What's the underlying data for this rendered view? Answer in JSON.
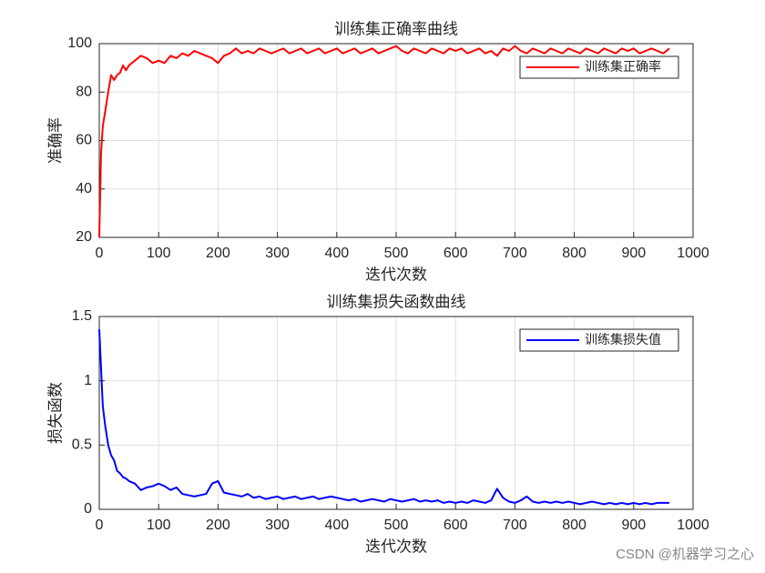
{
  "chart_data": [
    {
      "type": "line",
      "title": "训练集正确率曲线",
      "xlabel": "迭代次数",
      "ylabel": "准确率",
      "x": [
        0,
        3,
        6,
        10,
        15,
        20,
        25,
        30,
        35,
        40,
        45,
        50,
        60,
        70,
        80,
        90,
        100,
        110,
        120,
        130,
        140,
        150,
        160,
        170,
        180,
        190,
        200,
        210,
        220,
        230,
        240,
        250,
        260,
        270,
        280,
        290,
        300,
        310,
        320,
        330,
        340,
        350,
        360,
        370,
        380,
        390,
        400,
        410,
        420,
        430,
        440,
        450,
        460,
        470,
        480,
        490,
        500,
        510,
        520,
        530,
        540,
        550,
        560,
        570,
        580,
        590,
        600,
        610,
        620,
        630,
        640,
        650,
        660,
        670,
        680,
        690,
        700,
        710,
        720,
        730,
        740,
        750,
        760,
        770,
        780,
        790,
        800,
        810,
        820,
        830,
        840,
        850,
        860,
        870,
        880,
        890,
        900,
        910,
        920,
        930,
        940,
        950,
        960
      ],
      "series": [
        {
          "name": "训练集正确率",
          "color": "#ff0000",
          "values": [
            20,
            55,
            66,
            72,
            80,
            87,
            85,
            87,
            88,
            91,
            89,
            91,
            93,
            95,
            94,
            92,
            93,
            92,
            95,
            94,
            96,
            95,
            97,
            96,
            95,
            94,
            92,
            95,
            96,
            98,
            96,
            97,
            96,
            98,
            97,
            96,
            97,
            98,
            96,
            97,
            98,
            96,
            97,
            98,
            96,
            97,
            98,
            96,
            97,
            98,
            96,
            97,
            98,
            96,
            97,
            98,
            99,
            97,
            96,
            98,
            97,
            96,
            98,
            97,
            96,
            98,
            97,
            98,
            96,
            97,
            98,
            96,
            97,
            95,
            98,
            97,
            99,
            97,
            96,
            98,
            97,
            96,
            98,
            97,
            96,
            98,
            97,
            96,
            98,
            97,
            96,
            98,
            97,
            96,
            98,
            97,
            98,
            96,
            97,
            98,
            97,
            96,
            98
          ]
        }
      ],
      "xlim": [
        0,
        1000
      ],
      "xticks": [
        0,
        100,
        200,
        300,
        400,
        500,
        600,
        700,
        800,
        900,
        1000
      ],
      "ylim": [
        20,
        100
      ],
      "yticks": [
        20,
        40,
        60,
        80,
        100
      ],
      "grid": true,
      "legend": "northeast"
    },
    {
      "type": "line",
      "title": "训练集损失函数曲线",
      "xlabel": "迭代次数",
      "ylabel": "损失函数",
      "x": [
        0,
        3,
        6,
        10,
        15,
        20,
        25,
        30,
        35,
        40,
        45,
        50,
        60,
        70,
        80,
        90,
        100,
        110,
        120,
        130,
        140,
        150,
        160,
        170,
        180,
        190,
        200,
        210,
        220,
        230,
        240,
        250,
        260,
        270,
        280,
        290,
        300,
        310,
        320,
        330,
        340,
        350,
        360,
        370,
        380,
        390,
        400,
        410,
        420,
        430,
        440,
        450,
        460,
        470,
        480,
        490,
        500,
        510,
        520,
        530,
        540,
        550,
        560,
        570,
        580,
        590,
        600,
        610,
        620,
        630,
        640,
        650,
        660,
        670,
        680,
        690,
        700,
        710,
        720,
        730,
        740,
        750,
        760,
        770,
        780,
        790,
        800,
        810,
        820,
        830,
        840,
        850,
        860,
        870,
        880,
        890,
        900,
        910,
        920,
        930,
        940,
        950,
        960
      ],
      "series": [
        {
          "name": "训练集损失值",
          "color": "#0000ff",
          "values": [
            1.4,
            1.1,
            0.8,
            0.65,
            0.5,
            0.42,
            0.38,
            0.3,
            0.28,
            0.25,
            0.24,
            0.22,
            0.2,
            0.15,
            0.17,
            0.18,
            0.2,
            0.18,
            0.15,
            0.17,
            0.12,
            0.11,
            0.1,
            0.11,
            0.12,
            0.2,
            0.22,
            0.13,
            0.12,
            0.11,
            0.1,
            0.12,
            0.09,
            0.1,
            0.08,
            0.09,
            0.1,
            0.08,
            0.09,
            0.1,
            0.08,
            0.09,
            0.1,
            0.08,
            0.09,
            0.1,
            0.09,
            0.08,
            0.07,
            0.08,
            0.06,
            0.07,
            0.08,
            0.07,
            0.06,
            0.08,
            0.07,
            0.06,
            0.07,
            0.08,
            0.06,
            0.07,
            0.06,
            0.07,
            0.05,
            0.06,
            0.05,
            0.06,
            0.05,
            0.07,
            0.06,
            0.05,
            0.07,
            0.16,
            0.09,
            0.06,
            0.05,
            0.07,
            0.1,
            0.06,
            0.05,
            0.06,
            0.05,
            0.06,
            0.05,
            0.06,
            0.05,
            0.04,
            0.05,
            0.06,
            0.05,
            0.04,
            0.05,
            0.04,
            0.05,
            0.04,
            0.05,
            0.04,
            0.05,
            0.04,
            0.05,
            0.05,
            0.05
          ]
        }
      ],
      "xlim": [
        0,
        1000
      ],
      "xticks": [
        0,
        100,
        200,
        300,
        400,
        500,
        600,
        700,
        800,
        900,
        1000
      ],
      "ylim": [
        0,
        1.5
      ],
      "yticks": [
        0,
        0.5,
        1,
        1.5
      ],
      "grid": true,
      "legend": "northeast"
    }
  ],
  "watermark": "CSDN @机器学习之心"
}
